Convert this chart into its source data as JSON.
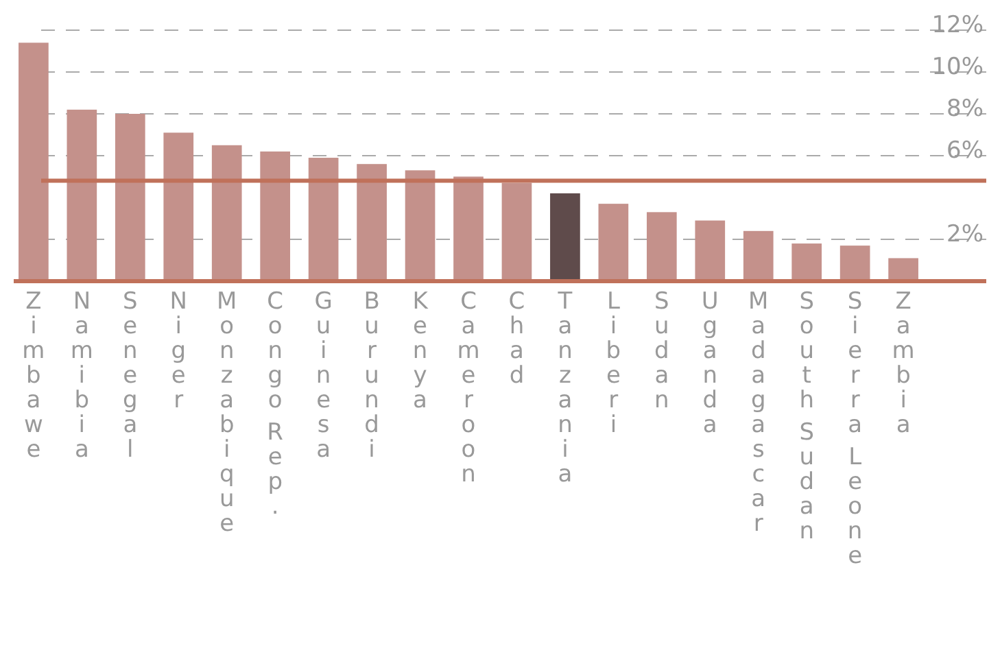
{
  "chart_data": {
    "type": "bar",
    "categories": [
      "Zimbawe",
      "Namibia",
      "Senegal",
      "Niger",
      "Monzabique",
      "Congo Rep.",
      "Guinesa",
      "Burundi",
      "Kenya",
      "Cameroon",
      "Chad",
      "Tanzania",
      "Liberi",
      "Sudan",
      "Uganda",
      "Madagascar",
      "South Sudan",
      "Sierra Leone",
      "Zambia"
    ],
    "values": [
      11.4,
      8.2,
      8.0,
      7.1,
      6.5,
      6.2,
      5.9,
      5.6,
      5.3,
      5.0,
      4.7,
      4.2,
      3.7,
      3.3,
      2.9,
      2.4,
      1.8,
      1.7,
      1.1
    ],
    "colors": [
      "#c4918b",
      "#c4918b",
      "#c4918b",
      "#c4918b",
      "#c4918b",
      "#c4918b",
      "#c4918b",
      "#c4918b",
      "#c4918b",
      "#c4918b",
      "#c4918b",
      "#5f4b4b",
      "#c4918b",
      "#c4918b",
      "#c4918b",
      "#c4918b",
      "#c4918b",
      "#c4918b",
      "#c4918b"
    ],
    "ylim": [
      0,
      12
    ],
    "yticks": [
      {
        "value": 2,
        "label": "2%"
      },
      {
        "value": 6,
        "label": "6%"
      },
      {
        "value": 8,
        "label": "8%"
      },
      {
        "value": 10,
        "label": "10%"
      },
      {
        "value": 12,
        "label": "12%"
      }
    ],
    "grid": "y",
    "ref_lines": [
      {
        "axis": "y",
        "value": 4.8,
        "color": "#c0715a"
      }
    ]
  }
}
